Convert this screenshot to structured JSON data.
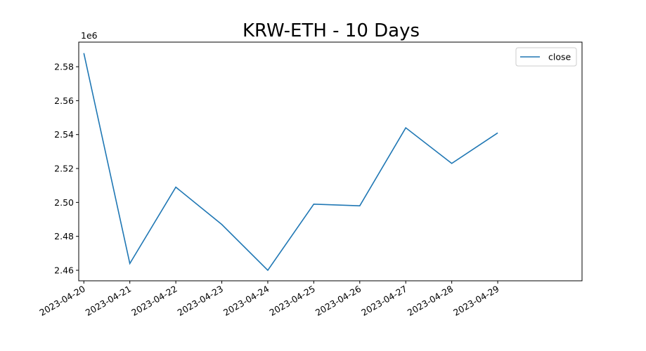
{
  "chart_data": {
    "type": "line",
    "title": "KRW-ETH - 10 Days",
    "x": [
      "2023-04-20",
      "2023-04-21",
      "2023-04-22",
      "2023-04-23",
      "2023-04-24",
      "2023-04-25",
      "2023-04-26",
      "2023-04-27",
      "2023-04-28",
      "2023-04-29"
    ],
    "series": [
      {
        "name": "close",
        "color": "#1f77b4",
        "values": [
          2.588,
          2.464,
          2.509,
          2.487,
          2.46,
          2.499,
          2.498,
          2.544,
          2.523,
          2.541
        ]
      }
    ],
    "xlim": [
      "2023-04-19T21:20",
      "2023-04-30T20:00"
    ],
    "xticks": [
      "2023-04-20",
      "2023-04-21",
      "2023-04-22",
      "2023-04-23",
      "2023-04-24",
      "2023-04-25",
      "2023-04-26",
      "2023-04-27",
      "2023-04-28",
      "2023-04-29"
    ],
    "ylim": [
      2.4538,
      2.5945
    ],
    "yticks": [
      2.46,
      2.48,
      2.5,
      2.52,
      2.54,
      2.56,
      2.58
    ],
    "y_offset_label": "1e6",
    "legend": "upper right",
    "grid": false
  }
}
